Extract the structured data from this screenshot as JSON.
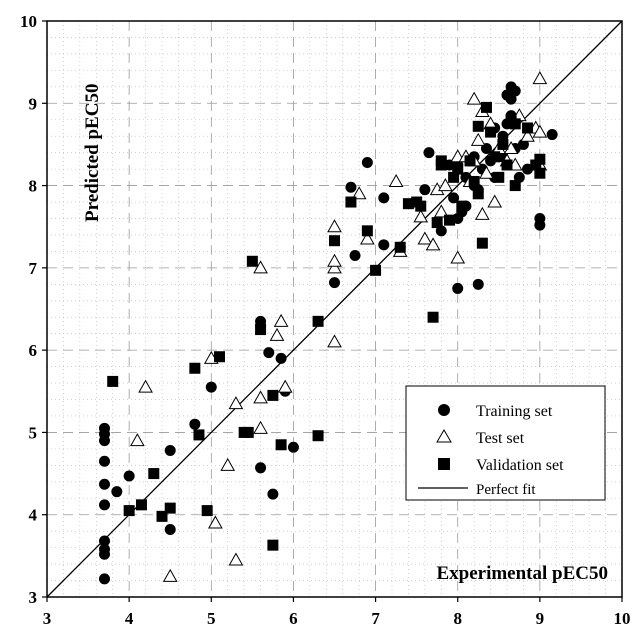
{
  "chart_data": {
    "type": "scatter",
    "xlabel": "Experimental pEC50",
    "ylabel": "Predicted pEC50",
    "xlim": [
      3,
      10
    ],
    "ylim": [
      3,
      10
    ],
    "x_ticks": [
      "3",
      "4",
      "5",
      "6",
      "7",
      "8",
      "9",
      "10"
    ],
    "y_ticks": [
      "3",
      "4",
      "5",
      "6",
      "7",
      "8",
      "9",
      "10"
    ],
    "grid": true,
    "legend_position": "lower-right",
    "series": [
      {
        "name": "Training set",
        "marker": "circle",
        "points": [
          [
            3.7,
            5.05
          ],
          [
            3.7,
            4.98
          ],
          [
            3.7,
            4.9
          ],
          [
            3.7,
            4.65
          ],
          [
            3.7,
            4.37
          ],
          [
            3.7,
            4.12
          ],
          [
            3.7,
            3.68
          ],
          [
            3.7,
            3.58
          ],
          [
            3.7,
            3.52
          ],
          [
            3.7,
            3.22
          ],
          [
            3.85,
            4.28
          ],
          [
            4.0,
            4.47
          ],
          [
            4.5,
            4.78
          ],
          [
            4.5,
            3.82
          ],
          [
            4.8,
            5.1
          ],
          [
            5.0,
            5.55
          ],
          [
            5.6,
            6.35
          ],
          [
            5.6,
            4.57
          ],
          [
            5.7,
            5.97
          ],
          [
            5.75,
            4.25
          ],
          [
            5.85,
            5.9
          ],
          [
            5.9,
            5.5
          ],
          [
            6.0,
            4.82
          ],
          [
            6.5,
            6.82
          ],
          [
            6.75,
            7.15
          ],
          [
            6.7,
            7.98
          ],
          [
            6.9,
            8.28
          ],
          [
            7.1,
            7.85
          ],
          [
            7.1,
            7.28
          ],
          [
            7.6,
            7.95
          ],
          [
            7.65,
            8.4
          ],
          [
            7.8,
            7.45
          ],
          [
            7.9,
            8.25
          ],
          [
            7.95,
            7.85
          ],
          [
            8.0,
            8.25
          ],
          [
            8.0,
            7.6
          ],
          [
            8.05,
            7.68
          ],
          [
            8.0,
            6.75
          ],
          [
            8.1,
            8.1
          ],
          [
            8.2,
            8.35
          ],
          [
            8.25,
            6.8
          ],
          [
            8.25,
            7.95
          ],
          [
            8.3,
            8.2
          ],
          [
            8.35,
            8.45
          ],
          [
            8.4,
            8.3
          ],
          [
            8.45,
            8.7
          ],
          [
            8.5,
            8.35
          ],
          [
            8.55,
            8.6
          ],
          [
            8.6,
            8.75
          ],
          [
            8.6,
            9.1
          ],
          [
            8.65,
            9.05
          ],
          [
            8.65,
            9.2
          ],
          [
            8.7,
            9.15
          ],
          [
            8.7,
            8.45
          ],
          [
            8.75,
            8.1
          ],
          [
            8.8,
            8.5
          ],
          [
            8.85,
            8.2
          ],
          [
            9.0,
            7.6
          ],
          [
            9.0,
            7.52
          ],
          [
            9.15,
            8.62
          ],
          [
            5.6,
            6.3
          ],
          [
            7.3,
            7.25
          ],
          [
            8.2,
            8.0
          ],
          [
            8.45,
            8.1
          ],
          [
            8.55,
            8.35
          ],
          [
            8.65,
            8.85
          ],
          [
            8.1,
            7.75
          ]
        ]
      },
      {
        "name": "Test set",
        "marker": "triangle",
        "points": [
          [
            4.2,
            5.55
          ],
          [
            4.1,
            4.9
          ],
          [
            4.5,
            3.25
          ],
          [
            5.0,
            5.9
          ],
          [
            5.05,
            3.9
          ],
          [
            5.2,
            4.6
          ],
          [
            5.3,
            3.45
          ],
          [
            5.3,
            5.35
          ],
          [
            5.6,
            7.0
          ],
          [
            5.6,
            5.05
          ],
          [
            5.6,
            5.42
          ],
          [
            5.8,
            6.18
          ],
          [
            5.85,
            6.35
          ],
          [
            5.9,
            5.55
          ],
          [
            6.5,
            6.1
          ],
          [
            6.5,
            7.0
          ],
          [
            6.5,
            7.08
          ],
          [
            6.5,
            7.5
          ],
          [
            6.8,
            7.9
          ],
          [
            6.9,
            7.35
          ],
          [
            7.25,
            8.05
          ],
          [
            7.3,
            7.2
          ],
          [
            7.55,
            7.62
          ],
          [
            7.6,
            7.35
          ],
          [
            7.7,
            7.28
          ],
          [
            7.75,
            7.95
          ],
          [
            7.8,
            7.68
          ],
          [
            7.85,
            8.0
          ],
          [
            8.0,
            7.12
          ],
          [
            8.0,
            8.35
          ],
          [
            8.15,
            8.05
          ],
          [
            8.2,
            8.3
          ],
          [
            8.2,
            9.05
          ],
          [
            8.25,
            8.55
          ],
          [
            8.3,
            7.65
          ],
          [
            8.3,
            8.9
          ],
          [
            8.35,
            8.15
          ],
          [
            8.4,
            8.75
          ],
          [
            8.45,
            7.8
          ],
          [
            8.5,
            8.45
          ],
          [
            8.6,
            8.3
          ],
          [
            8.65,
            8.45
          ],
          [
            8.7,
            8.25
          ],
          [
            8.75,
            8.85
          ],
          [
            8.85,
            8.6
          ],
          [
            8.95,
            8.7
          ],
          [
            9.0,
            8.65
          ],
          [
            9.0,
            9.3
          ],
          [
            9.0,
            8.25
          ],
          [
            8.1,
            8.35
          ]
        ]
      },
      {
        "name": "Validation set",
        "marker": "square",
        "points": [
          [
            3.8,
            5.62
          ],
          [
            4.0,
            4.05
          ],
          [
            4.15,
            4.12
          ],
          [
            4.3,
            4.5
          ],
          [
            4.4,
            3.98
          ],
          [
            4.5,
            4.08
          ],
          [
            4.8,
            5.78
          ],
          [
            4.85,
            4.97
          ],
          [
            4.95,
            4.05
          ],
          [
            5.1,
            5.92
          ],
          [
            5.4,
            5.0
          ],
          [
            5.45,
            5.0
          ],
          [
            5.5,
            7.08
          ],
          [
            5.6,
            6.25
          ],
          [
            5.75,
            5.45
          ],
          [
            5.75,
            3.63
          ],
          [
            5.85,
            4.85
          ],
          [
            6.3,
            6.35
          ],
          [
            6.3,
            4.96
          ],
          [
            6.5,
            7.33
          ],
          [
            6.7,
            7.8
          ],
          [
            6.9,
            7.45
          ],
          [
            7.0,
            6.97
          ],
          [
            7.3,
            7.25
          ],
          [
            7.4,
            7.78
          ],
          [
            7.5,
            7.8
          ],
          [
            7.55,
            7.75
          ],
          [
            7.7,
            6.4
          ],
          [
            7.75,
            7.55
          ],
          [
            7.8,
            8.25
          ],
          [
            7.8,
            8.3
          ],
          [
            7.9,
            7.58
          ],
          [
            7.95,
            8.1
          ],
          [
            8.0,
            8.2
          ],
          [
            8.05,
            7.75
          ],
          [
            8.15,
            8.3
          ],
          [
            8.2,
            8.05
          ],
          [
            8.25,
            8.72
          ],
          [
            8.25,
            7.9
          ],
          [
            8.3,
            7.3
          ],
          [
            8.35,
            8.95
          ],
          [
            8.4,
            8.65
          ],
          [
            8.45,
            8.35
          ],
          [
            8.5,
            8.1
          ],
          [
            8.55,
            8.5
          ],
          [
            8.6,
            8.25
          ],
          [
            8.65,
            8.8
          ],
          [
            8.7,
            8.75
          ],
          [
            8.7,
            8.0
          ],
          [
            8.85,
            8.7
          ],
          [
            8.95,
            8.25
          ],
          [
            9.0,
            8.32
          ],
          [
            9.0,
            8.15
          ]
        ]
      },
      {
        "name": "Perfect fit",
        "marker": "line",
        "points": [
          [
            3,
            3
          ],
          [
            10,
            10
          ]
        ]
      }
    ]
  }
}
